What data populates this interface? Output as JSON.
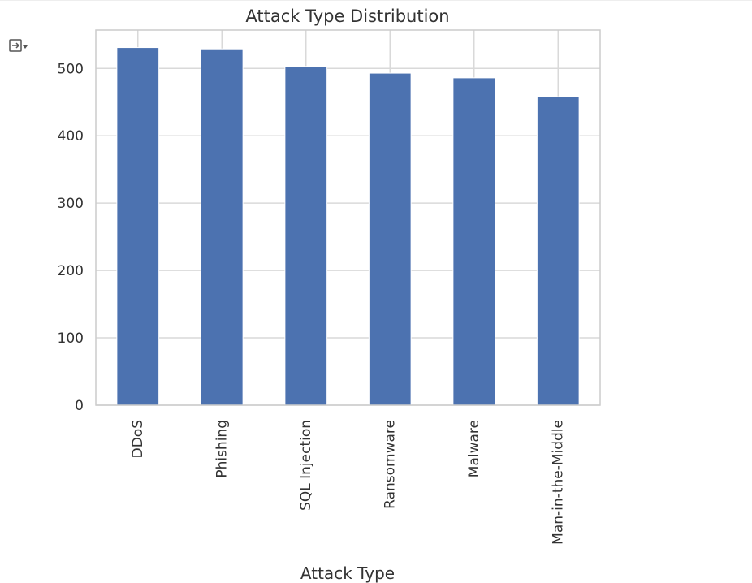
{
  "chart_data": {
    "type": "bar",
    "title": "Attack Type Distribution",
    "xlabel": "Attack Type",
    "ylabel": "",
    "categories": [
      "DDoS",
      "Phishing",
      "SQL Injection",
      "Ransomware",
      "Malware",
      "Man-in-the-Middle"
    ],
    "values": [
      531,
      529,
      503,
      493,
      486,
      458
    ],
    "ylim": [
      0,
      557
    ],
    "yticks": [
      0,
      100,
      200,
      300,
      400,
      500
    ],
    "grid": true,
    "bar_color": "#4c72b0",
    "grid_color": "#d9d9d9"
  },
  "toolbar": {
    "output_icon": "output-toggle-icon"
  }
}
